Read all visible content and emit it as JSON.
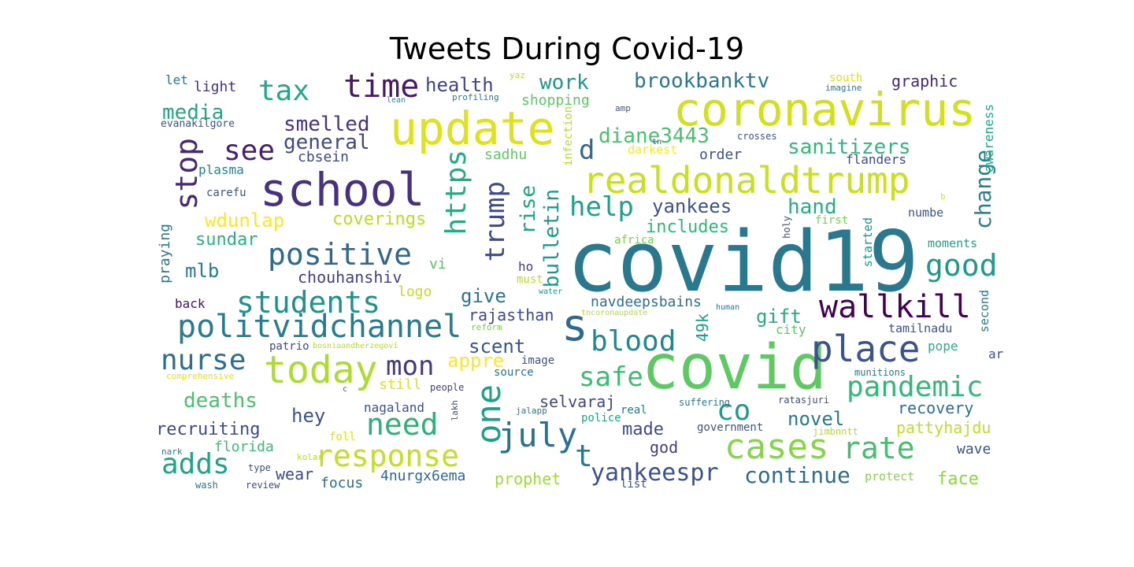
{
  "title": "Tweets During Covid-19",
  "words": [
    {
      "text": "covid19",
      "color": "#2a788e"
    },
    {
      "text": "covid",
      "color": "#5ec962"
    },
    {
      "text": "coronavirus",
      "color": "#d0e11c"
    },
    {
      "text": "update",
      "color": "#dde318"
    },
    {
      "text": "school",
      "color": "#46327e"
    },
    {
      "text": "realdonaldtrump",
      "color": "#c8e020"
    },
    {
      "text": "place",
      "color": "#3b528b"
    },
    {
      "text": "today",
      "color": "#addc30"
    },
    {
      "text": "cases",
      "color": "#86d549"
    },
    {
      "text": "politvidchannel",
      "color": "#287c8e"
    },
    {
      "text": "wallkill",
      "color": "#440154"
    },
    {
      "text": "s",
      "color": "#31688e"
    },
    {
      "text": "one",
      "color": "#1f9e89"
    },
    {
      "text": "july",
      "color": "#2c728e"
    },
    {
      "text": "time",
      "color": "#48186a"
    },
    {
      "text": "students",
      "color": "#21918c"
    },
    {
      "text": "positive",
      "color": "#31688e"
    },
    {
      "text": "response",
      "color": "#c2df23"
    },
    {
      "text": "pandemic",
      "color": "#35b779"
    },
    {
      "text": "rate",
      "color": "#44bf70"
    },
    {
      "text": "blood",
      "color": "#25858e"
    },
    {
      "text": "nurse",
      "color": "#2d708e"
    },
    {
      "text": "stop",
      "color": "#482878"
    },
    {
      "text": "tax",
      "color": "#22a884"
    },
    {
      "text": "need",
      "color": "#2db27d"
    },
    {
      "text": "adds",
      "color": "#20a386"
    },
    {
      "text": "safe",
      "color": "#3dbc74"
    },
    {
      "text": "good",
      "color": "#1f9a8a"
    },
    {
      "text": "https",
      "color": "#25ab82"
    },
    {
      "text": "trump",
      "color": "#3e4a89"
    },
    {
      "text": "mon",
      "color": "#453781"
    },
    {
      "text": "co",
      "color": "#1e9c89"
    },
    {
      "text": "t",
      "color": "#297b8e"
    },
    {
      "text": "d",
      "color": "#31688e"
    },
    {
      "text": "help",
      "color": "#1fa088"
    },
    {
      "text": "see",
      "color": "#481f70"
    },
    {
      "text": "yankeespr",
      "color": "#3b528b"
    },
    {
      "text": "continue",
      "color": "#2f6c8e"
    },
    {
      "text": "diane3443",
      "color": "#4ac16d"
    },
    {
      "text": "sanitizers",
      "color": "#35b779"
    },
    {
      "text": "brookbanktv",
      "color": "#2a788e"
    },
    {
      "text": "change",
      "color": "#27808e"
    },
    {
      "text": "smelled",
      "color": "#463480"
    },
    {
      "text": "general",
      "color": "#3e4989"
    },
    {
      "text": "media",
      "color": "#22a785"
    },
    {
      "text": "work",
      "color": "#1f978b"
    },
    {
      "text": "health",
      "color": "#414487"
    },
    {
      "text": "wdunlap",
      "color": "#fde725"
    },
    {
      "text": "coverings",
      "color": "#b5de2b"
    },
    {
      "text": "sundar",
      "color": "#2ab07f"
    },
    {
      "text": "mlb",
      "color": "#287d8e"
    },
    {
      "text": "chouhanshiv",
      "color": "#433e85"
    },
    {
      "text": "give",
      "color": "#2c738e"
    },
    {
      "text": "gift",
      "color": "#27ad81"
    },
    {
      "text": "hand",
      "color": "#26ad81"
    },
    {
      "text": "includes",
      "color": "#34b679"
    },
    {
      "text": "yankees",
      "color": "#3b528b"
    },
    {
      "text": "rise",
      "color": "#20a386"
    },
    {
      "text": "bulletin",
      "color": "#1f988b"
    },
    {
      "text": "scent",
      "color": "#3b528b"
    },
    {
      "text": "appre",
      "color": "#fde725"
    },
    {
      "text": "rajasthan",
      "color": "#3e4a89"
    },
    {
      "text": "49k",
      "color": "#1f9e89"
    },
    {
      "text": "navdeepsbains",
      "color": "#2e6f8e"
    },
    {
      "text": "deaths",
      "color": "#4ac16d"
    },
    {
      "text": "hey",
      "color": "#3b528b"
    },
    {
      "text": "recruiting",
      "color": "#3e4a89"
    },
    {
      "text": "florida",
      "color": "#3bbb75"
    },
    {
      "text": "wear",
      "color": "#3e4989"
    },
    {
      "text": "focus",
      "color": "#2e6e8e"
    },
    {
      "text": "4nurgx6ema",
      "color": "#31688e"
    },
    {
      "text": "prophet",
      "color": "#9fda3a"
    },
    {
      "text": "face",
      "color": "#8ed645"
    },
    {
      "text": "novel",
      "color": "#2a788e"
    },
    {
      "text": "recovery",
      "color": "#2d708e"
    },
    {
      "text": "pattyhajdu",
      "color": "#bddf26"
    },
    {
      "text": "wave",
      "color": "#3b528b"
    },
    {
      "text": "made",
      "color": "#3e4a89"
    },
    {
      "text": "god",
      "color": "#433d84"
    },
    {
      "text": "selvaraj",
      "color": "#3f4788"
    },
    {
      "text": "nagaland",
      "color": "#3b528b"
    },
    {
      "text": "still",
      "color": "#dde318"
    },
    {
      "text": "source",
      "color": "#2c728e"
    },
    {
      "text": "image",
      "color": "#3b528b"
    },
    {
      "text": "logo",
      "color": "#c2df23"
    },
    {
      "text": "must",
      "color": "#b8de29"
    },
    {
      "text": "ho",
      "color": "#433e85"
    },
    {
      "text": "vi",
      "color": "#52c569"
    },
    {
      "text": "order",
      "color": "#3b528b"
    },
    {
      "text": "sadhu",
      "color": "#5ec962"
    },
    {
      "text": "shopping",
      "color": "#5ec962"
    },
    {
      "text": "cbsein",
      "color": "#3e4989"
    },
    {
      "text": "plasma",
      "color": "#25848e"
    },
    {
      "text": "carefu",
      "color": "#3b528b"
    },
    {
      "text": "praying",
      "color": "#2a788e"
    },
    {
      "text": "back",
      "color": "#471164"
    },
    {
      "text": "patrio",
      "color": "#3e4a89"
    },
    {
      "text": "let",
      "color": "#2a788e"
    },
    {
      "text": "light",
      "color": "#46327e"
    },
    {
      "text": "evanakilgore",
      "color": "#3b528b"
    },
    {
      "text": "graphic",
      "color": "#482878"
    },
    {
      "text": "south",
      "color": "#dde318"
    },
    {
      "text": "imagine",
      "color": "#2a788e"
    },
    {
      "text": "awareness",
      "color": "#22a884"
    },
    {
      "text": "flanders",
      "color": "#3e4989"
    },
    {
      "text": "crosses",
      "color": "#3b528b"
    },
    {
      "text": "darkest",
      "color": "#fde725"
    },
    {
      "text": "numbe",
      "color": "#3b528b"
    },
    {
      "text": "started",
      "color": "#21918c"
    },
    {
      "text": "first",
      "color": "#7ad151"
    },
    {
      "text": "holy",
      "color": "#3e4a89"
    },
    {
      "text": "moments",
      "color": "#1fa088"
    },
    {
      "text": "second",
      "color": "#2a788e"
    },
    {
      "text": "tamilnadu",
      "color": "#3b528b"
    },
    {
      "text": "city",
      "color": "#5ec962"
    },
    {
      "text": "pope",
      "color": "#2ab07f"
    },
    {
      "text": "ar",
      "color": "#3b528b"
    },
    {
      "text": "munitions",
      "color": "#2a788e"
    },
    {
      "text": "ratasjuri",
      "color": "#3e4989"
    },
    {
      "text": "jimbnntt",
      "color": "#b5de2b"
    },
    {
      "text": "government",
      "color": "#3b528b"
    },
    {
      "text": "suffering",
      "color": "#2a788e"
    },
    {
      "text": "real",
      "color": "#2a788e"
    },
    {
      "text": "police",
      "color": "#22a785"
    },
    {
      "text": "jalapp",
      "color": "#2a788e"
    },
    {
      "text": "lakh",
      "color": "#3e4a89"
    },
    {
      "text": "people",
      "color": "#433e85"
    },
    {
      "text": "foll",
      "color": "#dde318"
    },
    {
      "text": "comprehensive",
      "color": "#dde318"
    },
    {
      "text": "bosniaandherzegovi",
      "color": "#b5de2b"
    },
    {
      "text": "reform",
      "color": "#7ad151"
    },
    {
      "text": "tncoronaupdate",
      "color": "#b5de2b"
    },
    {
      "text": "water",
      "color": "#21918c"
    },
    {
      "text": "human",
      "color": "#2a788e"
    },
    {
      "text": "africa",
      "color": "#7ad151"
    },
    {
      "text": "infection",
      "color": "#b5de2b"
    },
    {
      "text": "amp",
      "color": "#3b528b"
    },
    {
      "text": "tn",
      "color": "#3b528b"
    },
    {
      "text": "b",
      "color": "#dde318"
    },
    {
      "text": "yaz",
      "color": "#b5de2b"
    },
    {
      "text": "lean",
      "color": "#21918c"
    },
    {
      "text": "profiling",
      "color": "#2a788e"
    },
    {
      "text": "nark",
      "color": "#2a788e"
    },
    {
      "text": "kolar",
      "color": "#b5de2b"
    },
    {
      "text": "type",
      "color": "#3b528b"
    },
    {
      "text": "wash",
      "color": "#2a788e"
    },
    {
      "text": "review",
      "color": "#3e4989"
    },
    {
      "text": "list",
      "color": "#3b528b"
    },
    {
      "text": "protect",
      "color": "#86d549"
    },
    {
      "text": "c",
      "color": "#3b528b"
    }
  ]
}
